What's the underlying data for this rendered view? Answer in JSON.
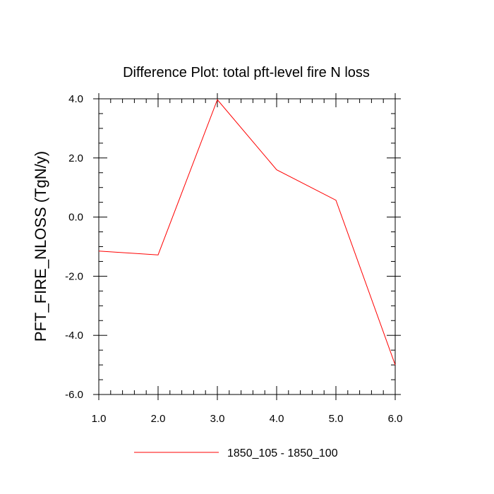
{
  "chart_data": {
    "type": "line",
    "title": "Difference Plot: total pft-level fire N loss",
    "xlabel": "",
    "ylabel": "PFT_FIRE_NLOSS  (TgN/y)",
    "x": [
      1.0,
      2.0,
      3.0,
      4.0,
      5.0,
      6.0
    ],
    "series": [
      {
        "name": "1850_105 - 1850_100",
        "color": "#ff0000",
        "values": [
          -1.15,
          -1.28,
          3.97,
          1.6,
          0.57,
          -5.0
        ]
      }
    ],
    "xlim": [
      1.0,
      6.0
    ],
    "ylim": [
      -6.0,
      4.0
    ],
    "x_ticks": [
      1.0,
      2.0,
      3.0,
      4.0,
      5.0,
      6.0
    ],
    "x_tick_labels": [
      "1.0",
      "2.0",
      "3.0",
      "4.0",
      "5.0",
      "6.0"
    ],
    "y_ticks": [
      -6.0,
      -4.0,
      -2.0,
      0.0,
      2.0,
      4.0
    ],
    "y_tick_labels": [
      "-6.0",
      "-4.0",
      "-2.0",
      "0.0",
      "2.0",
      "4.0"
    ],
    "grid": false,
    "legend_position": "bottom"
  }
}
